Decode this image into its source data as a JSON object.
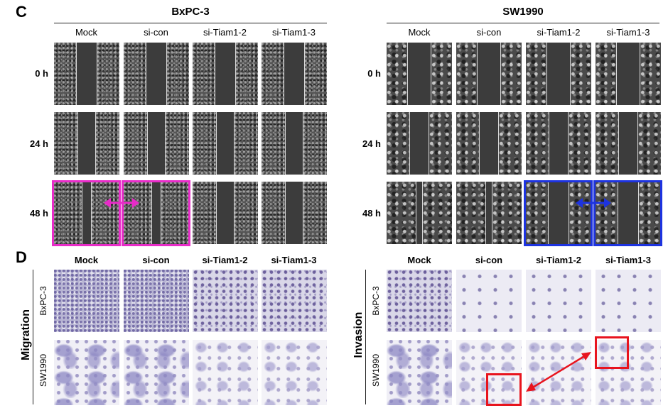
{
  "panel_c": {
    "letter": "C",
    "groups": [
      {
        "title": "BxPC-3",
        "columns": [
          "Mock",
          "si-con",
          "si-Tiam1-2",
          "si-Tiam1-3"
        ]
      },
      {
        "title": "SW1990",
        "columns": [
          "Mock",
          "si-con",
          "si-Tiam1-2",
          "si-Tiam1-3"
        ]
      }
    ],
    "time_points": [
      "0 h",
      "24 h",
      "48 h"
    ]
  },
  "panel_d": {
    "letter": "D",
    "columns": [
      "Mock",
      "si-con",
      "si-Tiam1-2",
      "si-Tiam1-3"
    ],
    "left_assay": "Migration",
    "right_assay": "Invasion",
    "cell_lines": [
      "BxPC-3",
      "SW1990"
    ]
  },
  "annotation_colors": {
    "migration_highlight": "#e82bc8",
    "sw1990_highlight": "#1d33e0",
    "invasion_highlight": "#e8141e"
  }
}
